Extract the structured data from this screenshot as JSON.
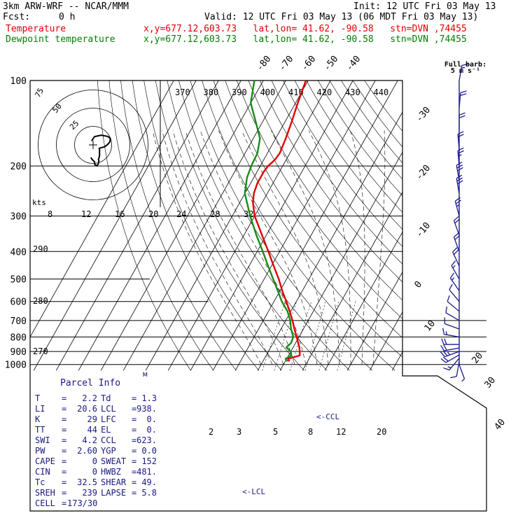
{
  "header": {
    "model": "3km ARW-WRF -- NCAR/MMM",
    "init": "Init: 12 UTC Fri 03 May 13",
    "fcst_label": "Fcst:",
    "fcst_value": "0 h",
    "valid": "Valid: 12 UTC Fri 03 May 13 (06 MDT Fri 03 May 13)",
    "temp_label": "Temperature",
    "temp_info": "x,y=677.12,603.73   lat,lon= 41.62, -90.58   stn=DVN ,74455",
    "dew_label": "Dewpoint temperature",
    "dew_info": "x,y=677.12,603.73   lat,lon= 41.62, -90.58   stn=DVN ,74455"
  },
  "barb_legend": {
    "title": "Full barb:",
    "value": "5 m s⁻¹"
  },
  "colors": {
    "temperature": "#e00000",
    "dewpoint": "#1a8a1a",
    "hodograph": "#000000",
    "barbs": "#1a1a90",
    "parcel_text": "#1a1a80",
    "isotherm": "#000000",
    "dry_adiabat": "#000000",
    "moist_adiabat": "#000000",
    "mixing_ratio": "#000000"
  },
  "chart_data": {
    "type": "line",
    "title": "",
    "pressure_labels": [
      "100",
      "200",
      "300",
      "400",
      "500",
      "600",
      "700",
      "800",
      "900",
      "1000"
    ],
    "isotherm_labels_top": [
      "-80",
      "-70",
      "-60",
      "-50",
      "-40"
    ],
    "isotherm_labels_right": [
      "-30",
      "-20",
      "-10",
      "0",
      "10",
      "20",
      "30",
      "40"
    ],
    "theta_e_labels": [
      "370",
      "380",
      "390",
      "400",
      "410",
      "420",
      "430",
      "440"
    ],
    "theta_labels": [
      "290",
      "280",
      "270"
    ],
    "speed_scale_label": "kts",
    "speed_scale_values": [
      "8",
      "12",
      "16",
      "20",
      "24",
      "28",
      "32"
    ],
    "hodograph_ring_labels": [
      "75",
      "50",
      "25"
    ],
    "mixing_ratio_labels": [
      "2",
      "3",
      "5",
      "8",
      "12",
      "20"
    ],
    "ccl_label": "<-CCL",
    "lcl_label": "<-LCL",
    "series": [
      {
        "name": "Temperature",
        "pressure_hPa": [
          975,
          955,
          930,
          900,
          870,
          840,
          800,
          750,
          700,
          650,
          600,
          550,
          500,
          450,
          400,
          350,
          300,
          270,
          250,
          230,
          210,
          200,
          190,
          180,
          160,
          140,
          120,
          100
        ],
        "temperature_C": [
          1.8,
          0.6,
          5.0,
          4.0,
          2.8,
          1.2,
          -1.0,
          -4.0,
          -7.0,
          -10.5,
          -14.5,
          -19.0,
          -23.5,
          -29.0,
          -35.0,
          -42.0,
          -50.0,
          -54.0,
          -56.0,
          -57.0,
          -57.0,
          -56.5,
          -55.0,
          -54.5,
          -55.5,
          -57.0,
          -59.0,
          -61.0
        ]
      },
      {
        "name": "Dewpoint temperature",
        "pressure_hPa": [
          975,
          955,
          930,
          900,
          870,
          840,
          800,
          750,
          700,
          650,
          600,
          550,
          500,
          450,
          400,
          350,
          300,
          250,
          220,
          200,
          180,
          160,
          140,
          120,
          100
        ],
        "temperature_C": [
          1.0,
          -0.5,
          1.3,
          0.0,
          -3.0,
          -2.0,
          -2.5,
          -5.5,
          -8.0,
          -11.5,
          -16.5,
          -21.0,
          -26.0,
          -31.5,
          -37.5,
          -44.5,
          -52.0,
          -60.0,
          -63.0,
          -64.0,
          -64.5,
          -67.0,
          -73.0,
          -80.0,
          -84.0
        ]
      }
    ],
    "wind_pressure_hPa": [
      1000,
      975,
      950,
      925,
      900,
      875,
      850,
      800,
      750,
      700,
      650,
      600,
      550,
      500,
      450,
      400,
      350,
      300,
      250,
      225,
      200,
      175,
      150,
      125,
      100
    ],
    "wind_speed_ms": [
      3,
      6,
      9,
      12,
      13,
      12,
      10,
      8,
      6,
      5,
      6,
      7,
      8,
      9,
      10,
      11,
      12,
      14,
      15,
      15,
      14,
      12,
      11,
      10,
      9
    ],
    "wind_direction_deg": [
      160,
      190,
      220,
      240,
      250,
      260,
      270,
      280,
      290,
      300,
      310,
      320,
      325,
      330,
      335,
      340,
      340,
      345,
      350,
      350,
      355,
      355,
      0,
      5,
      10
    ]
  },
  "parcel": {
    "title": "Parcel Info",
    "rows": [
      {
        "k1": "T",
        "v1": "2.2",
        "k2": "Td",
        "v2": "1.3"
      },
      {
        "k1": "LI",
        "v1": "20.6",
        "k2": "LCL",
        "v2": "938."
      },
      {
        "k1": "K",
        "v1": "29",
        "k2": "LFC",
        "v2": "0."
      },
      {
        "k1": "TT",
        "v1": "44",
        "k2": "EL",
        "v2": "0."
      },
      {
        "k1": "SWI",
        "v1": "4.2",
        "k2": "CCL",
        "v2": "623."
      },
      {
        "k1": "PW",
        "v1": "2.60",
        "k2": "YGP",
        "v2": "0.0"
      },
      {
        "k1": "CAPE",
        "v1": "0",
        "k2": "SWEAT",
        "v2": "152"
      },
      {
        "k1": "CIN",
        "v1": "0",
        "k2": "HWBZ",
        "v2": "481."
      },
      {
        "k1": "Tc",
        "v1": "32.5",
        "k2": "SHEAR",
        "v2": "49."
      },
      {
        "k1": "SREH",
        "v1": "239",
        "k2": "LAPSE",
        "v2": "5.8"
      },
      {
        "k1": "CELL",
        "v1": "173/30",
        "k2": "",
        "v2": ""
      }
    ]
  }
}
